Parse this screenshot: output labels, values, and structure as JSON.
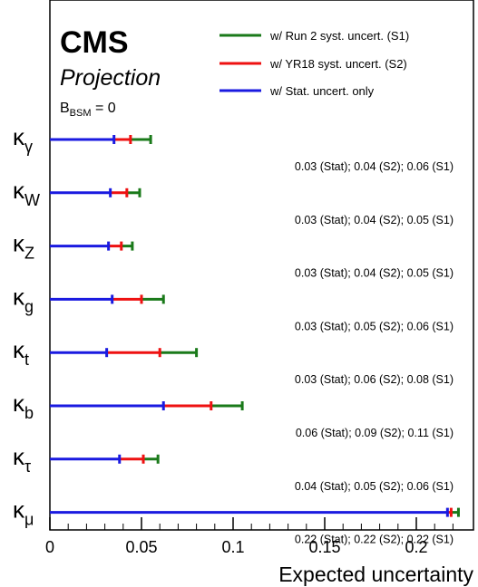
{
  "header": {
    "experiment": "CMS",
    "status": "Projection",
    "condition_main": "B",
    "condition_sub": "BSM",
    "condition_rest": " = 0"
  },
  "legend": [
    {
      "label": "w/ Run 2 syst. uncert. (S1)",
      "color": "#1a7a1a"
    },
    {
      "label": "w/ YR18 syst. uncert. (S2)",
      "color": "#ee1111"
    },
    {
      "label": "w/ Stat. uncert. only",
      "color": "#1a1ae0"
    }
  ],
  "colors": {
    "stat": "#1a1ae0",
    "s2": "#ee1111",
    "s1": "#1a7a1a",
    "axis": "#000000"
  },
  "chart_data": {
    "type": "bar",
    "orientation": "horizontal",
    "xlabel": "Expected uncertainty",
    "xlim": [
      0,
      0.23
    ],
    "xticks": [
      "0",
      "0.05",
      "0.1",
      "0.15",
      "0.2"
    ],
    "xtick_values": [
      0,
      0.05,
      0.1,
      0.15,
      0.2
    ],
    "legend_position": "top-right",
    "categories": [
      {
        "symbol": "κ",
        "sub": "γ"
      },
      {
        "symbol": "κ",
        "sub": "W"
      },
      {
        "symbol": "κ",
        "sub": "Z"
      },
      {
        "symbol": "κ",
        "sub": "g"
      },
      {
        "symbol": "κ",
        "sub": "t"
      },
      {
        "symbol": "κ",
        "sub": "b"
      },
      {
        "symbol": "κ",
        "sub": "τ"
      },
      {
        "symbol": "κ",
        "sub": "μ"
      }
    ],
    "series": [
      {
        "name": "w/ Stat. uncert. only",
        "values": [
          0.035,
          0.033,
          0.032,
          0.034,
          0.031,
          0.062,
          0.038,
          0.217
        ]
      },
      {
        "name": "w/ YR18 syst. uncert. (S2)",
        "values": [
          0.044,
          0.042,
          0.039,
          0.05,
          0.06,
          0.088,
          0.051,
          0.219
        ]
      },
      {
        "name": "w/ Run 2 syst. uncert. (S1)",
        "values": [
          0.055,
          0.049,
          0.045,
          0.062,
          0.08,
          0.105,
          0.059,
          0.223
        ]
      }
    ],
    "annotations": [
      "0.03 (Stat); 0.04 (S2); 0.06 (S1)",
      "0.03 (Stat); 0.04 (S2); 0.05 (S1)",
      "0.03 (Stat); 0.04 (S2); 0.05 (S1)",
      "0.03 (Stat); 0.05 (S2); 0.06 (S1)",
      "0.03 (Stat); 0.06 (S2); 0.08 (S1)",
      "0.06 (Stat); 0.09 (S2); 0.11 (S1)",
      "0.04 (Stat); 0.05 (S2); 0.06 (S1)",
      "0.22 (Stat); 0.22 (S2); 0.22 (S1)"
    ]
  }
}
